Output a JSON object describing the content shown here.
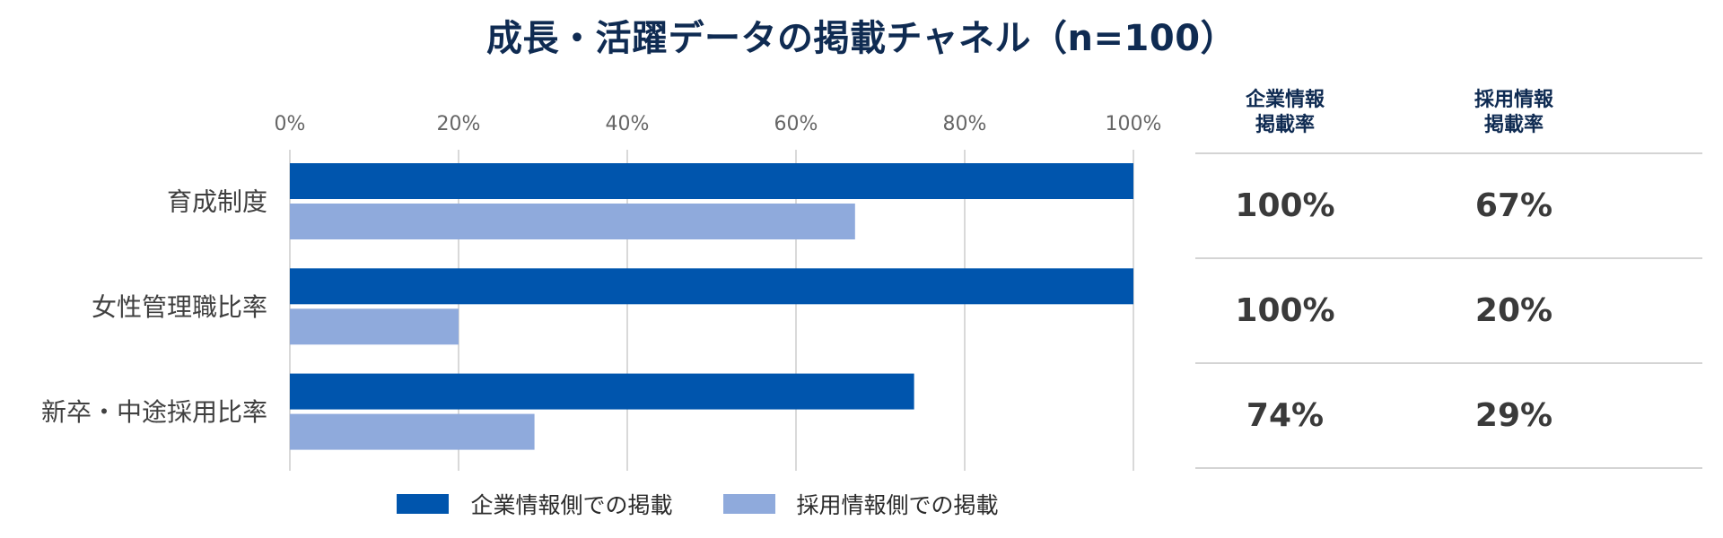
{
  "chart_data": {
    "type": "bar",
    "orientation": "horizontal",
    "title": "成長・活躍データの掲載チャネル（n=100）",
    "categories": [
      "育成制度",
      "女性管理職比率",
      "新卒・中途採用比率"
    ],
    "series": [
      {
        "name": "企業情報側での掲載",
        "color": "#0055AD",
        "values": [
          100,
          100,
          74
        ]
      },
      {
        "name": "採用情報側での掲載",
        "color": "#8FAADC",
        "values": [
          67,
          20,
          29
        ]
      }
    ],
    "xlim": [
      0,
      100
    ],
    "xticks": [
      "0%",
      "20%",
      "40%",
      "60%",
      "80%",
      "100%"
    ],
    "grid": true,
    "legend_position": "bottom"
  },
  "table": {
    "headers": [
      [
        "企業情報",
        "掲載率"
      ],
      [
        "採用情報",
        "掲載率"
      ]
    ],
    "rows": [
      [
        "100%",
        "67%"
      ],
      [
        "100%",
        "20%"
      ],
      [
        "74%",
        "29%"
      ]
    ]
  }
}
